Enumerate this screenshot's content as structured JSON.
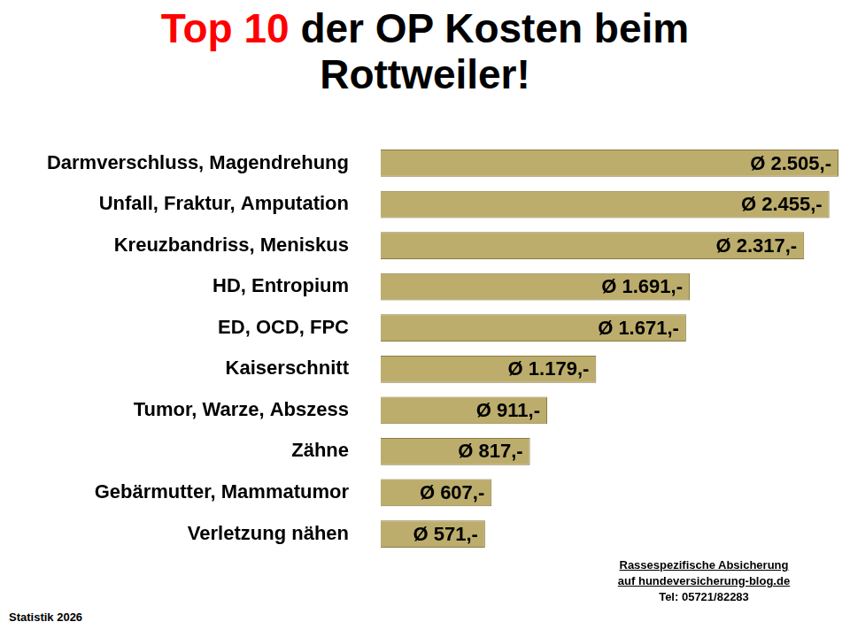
{
  "chart_data": {
    "type": "bar",
    "orientation": "horizontal",
    "title": "Top 10 der OP Kosten beim Rottweiler!",
    "categories": [
      "Darmverschluss, Magendrehung",
      "Unfall, Fraktur, Amputation",
      "Kreuzbandriss, Meniskus",
      "HD, Entropium",
      "ED, OCD, FPC",
      "Kaiserschnitt",
      "Tumor, Warze, Abszess",
      "Zähne",
      "Gebärmutter, Mammatumor",
      "Verletzung nähen"
    ],
    "values": [
      2505,
      2455,
      2317,
      1691,
      1671,
      1179,
      911,
      817,
      607,
      571
    ],
    "value_labels": [
      "Ø 2.505,-",
      "Ø 2.455,-",
      "Ø 2.317,-",
      "Ø 1.691,-",
      "Ø 1.671,-",
      "Ø 1.179,-",
      "Ø 911,-",
      "Ø 817,-",
      "Ø 607,-",
      "Ø 571,-"
    ],
    "color": "#bcad6c",
    "xlim": [
      0,
      2505
    ],
    "xticks": [],
    "grid": false,
    "data_labels": true,
    "tick_labels": "y"
  },
  "footer": {
    "source_lines": [
      "Rassespezifische  Absicherung",
      "auf hundeversicherung-blog.de",
      "Tel: 05721/82283"
    ],
    "note": "Statistik 2026"
  }
}
